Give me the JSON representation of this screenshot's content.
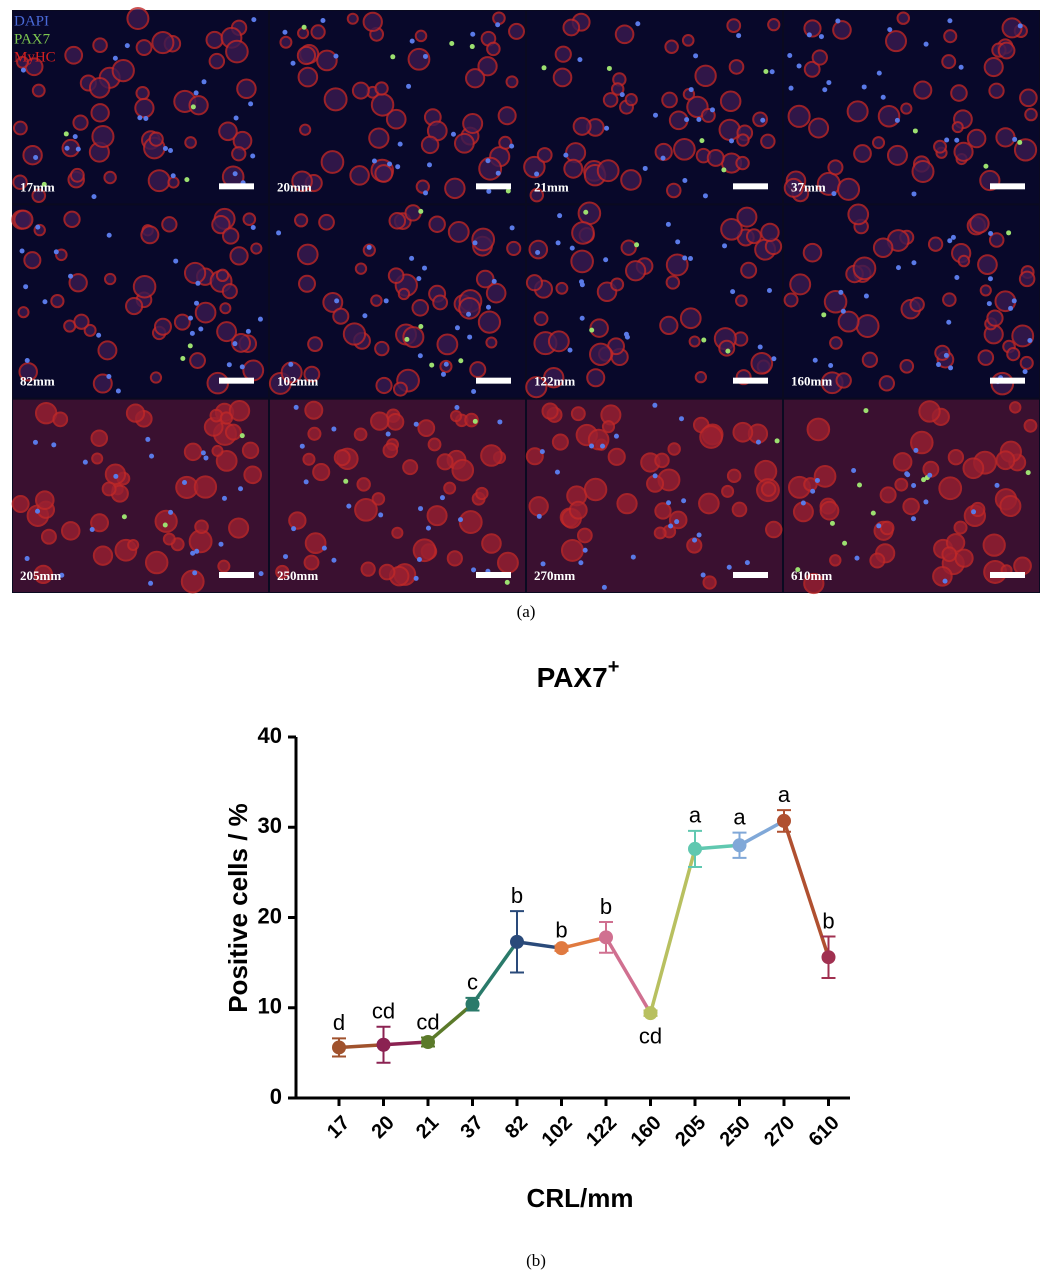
{
  "figure": {
    "panel_a": {
      "channels": [
        {
          "name": "DAPI",
          "color": "#4a6ad8"
        },
        {
          "name": "PAX7",
          "color": "#7ec850"
        },
        {
          "name": "MyHC",
          "color": "#d42020"
        }
      ],
      "tiles": [
        "17mm",
        "20mm",
        "21mm",
        "37mm",
        "82mm",
        "102mm",
        "122mm",
        "160mm",
        "205mm",
        "250mm",
        "270mm",
        "610mm"
      ],
      "caption": "(a)"
    },
    "caption_b": "(b)"
  },
  "chart_data": {
    "type": "line",
    "title": "PAX7",
    "title_superscript": "+",
    "x_label": "CRL/mm",
    "y_label": "Positive cells / %",
    "categories": [
      "17",
      "20",
      "21",
      "37",
      "82",
      "102",
      "122",
      "160",
      "205",
      "250",
      "270",
      "610"
    ],
    "values": [
      5.6,
      5.9,
      6.2,
      10.4,
      17.3,
      16.6,
      17.8,
      9.4,
      27.6,
      28.0,
      30.7,
      15.6
    ],
    "errors": [
      1.0,
      2.0,
      0.5,
      0.7,
      3.4,
      0.3,
      1.7,
      0.3,
      2.0,
      1.4,
      1.2,
      2.3
    ],
    "annotations": [
      "d",
      "cd",
      "cd",
      "c",
      "b",
      "b",
      "b",
      "cd",
      "a",
      "a",
      "a",
      "b"
    ],
    "colors": [
      "#a0522d",
      "#8b2252",
      "#5b7a2a",
      "#2a7a6a",
      "#2a4a7a",
      "#e07a40",
      "#d07090",
      "#b8c060",
      "#60c8b0",
      "#80a8d8",
      "#b05030",
      "#a03050"
    ],
    "ylim": [
      0,
      40
    ],
    "yticks": [
      0,
      10,
      20,
      30,
      40
    ]
  }
}
